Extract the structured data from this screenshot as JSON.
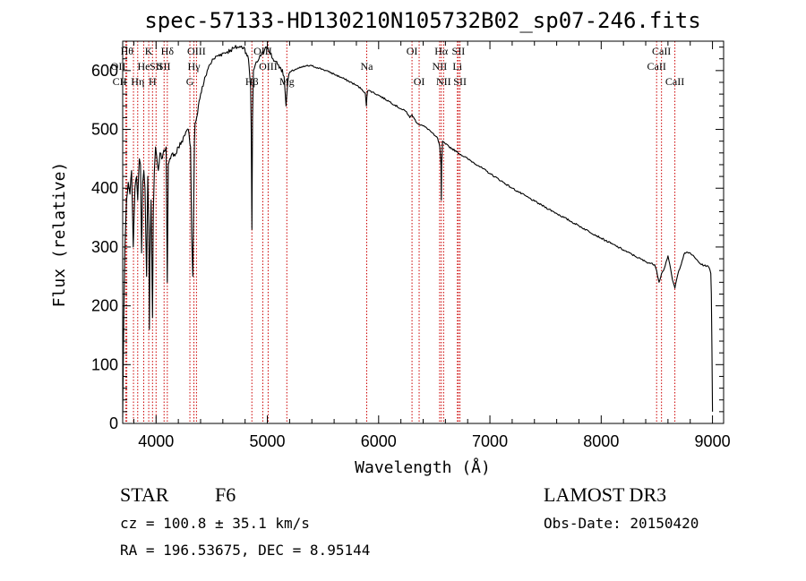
{
  "chart_data": {
    "type": "line",
    "title": "spec-57133-HD130210N105732B02_sp07-246.fits",
    "xlabel": "Wavelength (Å)",
    "ylabel": "Flux (relative)",
    "xlim": [
      3700,
      9100
    ],
    "ylim": [
      0,
      650
    ],
    "xticks": [
      4000,
      5000,
      6000,
      7000,
      8000,
      9000
    ],
    "yticks": [
      0,
      100,
      200,
      300,
      400,
      500,
      600
    ],
    "xticks_minor_step": 200,
    "yticks_minor_step": 20,
    "series": [
      {
        "name": "spectrum",
        "x": [
          3700,
          3710,
          3720,
          3735,
          3750,
          3765,
          3780,
          3795,
          3810,
          3825,
          3835,
          3850,
          3860,
          3870,
          3880,
          3890,
          3900,
          3915,
          3925,
          3935,
          3940,
          3945,
          3955,
          3968,
          3975,
          3985,
          3995,
          4005,
          4020,
          4035,
          4050,
          4070,
          4090,
          4101,
          4110,
          4130,
          4150,
          4170,
          4200,
          4230,
          4260,
          4290,
          4310,
          4320,
          4330,
          4340,
          4345,
          4350,
          4365,
          4380,
          4400,
          4430,
          4460,
          4480,
          4500,
          4520,
          4550,
          4580,
          4610,
          4640,
          4670,
          4700,
          4730,
          4760,
          4790,
          4810,
          4830,
          4850,
          4855,
          4861,
          4867,
          4875,
          4900,
          4925,
          4950,
          4975,
          5000,
          5025,
          5050,
          5075,
          5100,
          5120,
          5150,
          5168,
          5175,
          5183,
          5195,
          5210,
          5250,
          5300,
          5350,
          5400,
          5450,
          5500,
          5550,
          5600,
          5700,
          5800,
          5850,
          5880,
          5890,
          5895,
          5900,
          5920,
          6000,
          6100,
          6200,
          6250,
          6280,
          6300,
          6320,
          6350,
          6400,
          6450,
          6500,
          6530,
          6550,
          6560,
          6563,
          6566,
          6575,
          6600,
          6700,
          6800,
          6900,
          7000,
          7200,
          7400,
          7600,
          7800,
          8000,
          8100,
          8200,
          8300,
          8400,
          8480,
          8498,
          8520,
          8542,
          8560,
          8600,
          8640,
          8662,
          8690,
          8750,
          8800,
          8850,
          8900,
          8950,
          8970,
          8985,
          8990,
          8995,
          9000
        ],
        "y": [
          10,
          180,
          300,
          380,
          410,
          390,
          430,
          300,
          400,
          420,
          380,
          450,
          440,
          290,
          410,
          430,
          400,
          250,
          420,
          330,
          160,
          280,
          380,
          180,
          360,
          430,
          470,
          455,
          430,
          460,
          450,
          465,
          470,
          240,
          440,
          450,
          460,
          455,
          470,
          480,
          490,
          500,
          470,
          320,
          250,
          400,
          480,
          510,
          520,
          540,
          560,
          580,
          600,
          610,
          615,
          620,
          625,
          628,
          630,
          632,
          635,
          638,
          640,
          640,
          640,
          630,
          620,
          570,
          500,
          330,
          520,
          600,
          615,
          620,
          630,
          635,
          640,
          630,
          620,
          615,
          610,
          605,
          590,
          540,
          560,
          580,
          595,
          598,
          602,
          605,
          608,
          608,
          605,
          602,
          598,
          594,
          585,
          575,
          568,
          562,
          540,
          555,
          565,
          566,
          558,
          547,
          535,
          530,
          520,
          525,
          518,
          510,
          506,
          500,
          490,
          485,
          470,
          440,
          380,
          440,
          480,
          475,
          462,
          450,
          438,
          425,
          400,
          378,
          357,
          336,
          315,
          305,
          295,
          285,
          275,
          270,
          260,
          240,
          255,
          260,
          285,
          245,
          230,
          255,
          290,
          290,
          280,
          270,
          268,
          265,
          255,
          220,
          120,
          20
        ]
      }
    ],
    "spectral_lines": [
      {
        "label": "Hθ",
        "wavelength": 3797,
        "row": 0,
        "anchor": "end"
      },
      {
        "label": "OII",
        "wavelength": 3727,
        "row": 1,
        "anchor": "end"
      },
      {
        "label": "CII",
        "wavelength": 3737,
        "row": 2,
        "anchor": "end"
      },
      {
        "label": "Hη",
        "wavelength": 3835,
        "row": 2,
        "anchor": "middle"
      },
      {
        "label": "He",
        "wavelength": 3889,
        "row": 1,
        "anchor": "middle"
      },
      {
        "label": "K",
        "wavelength": 3934,
        "row": 0,
        "anchor": "middle"
      },
      {
        "label": "SII",
        "wavelength": 4000,
        "row": 1,
        "anchor": "middle"
      },
      {
        "label": "H",
        "wavelength": 3968,
        "row": 2,
        "anchor": "middle"
      },
      {
        "label": "Hδ",
        "wavelength": 4101,
        "row": 0,
        "anchor": "middle"
      },
      {
        "label": "SII",
        "wavelength": 4072,
        "row": 1,
        "anchor": "middle"
      },
      {
        "label": "OIII",
        "wavelength": 4363,
        "row": 0,
        "anchor": "middle"
      },
      {
        "label": "Hγ",
        "wavelength": 4340,
        "row": 1,
        "anchor": "middle"
      },
      {
        "label": "G",
        "wavelength": 4304,
        "row": 2,
        "anchor": "middle"
      },
      {
        "label": "Hβ",
        "wavelength": 4861,
        "row": 2,
        "anchor": "middle"
      },
      {
        "label": "OIII",
        "wavelength": 4959,
        "row": 0,
        "anchor": "middle"
      },
      {
        "label": "OIII",
        "wavelength": 5007,
        "row": 1,
        "anchor": "middle"
      },
      {
        "label": "Mg",
        "wavelength": 5175,
        "row": 2,
        "anchor": "middle"
      },
      {
        "label": "Na",
        "wavelength": 5893,
        "row": 1,
        "anchor": "middle"
      },
      {
        "label": "OI",
        "wavelength": 6300,
        "row": 0,
        "anchor": "middle"
      },
      {
        "label": "OI",
        "wavelength": 6364,
        "row": 2,
        "anchor": "middle"
      },
      {
        "label": "Hα",
        "wavelength": 6563,
        "row": 0,
        "anchor": "middle"
      },
      {
        "label": "NII",
        "wavelength": 6548,
        "row": 1,
        "anchor": "middle"
      },
      {
        "label": "NII",
        "wavelength": 6584,
        "row": 2,
        "anchor": "middle"
      },
      {
        "label": "SII",
        "wavelength": 6717,
        "row": 0,
        "anchor": "middle"
      },
      {
        "label": "Li",
        "wavelength": 6708,
        "row": 1,
        "anchor": "middle"
      },
      {
        "label": "SII",
        "wavelength": 6731,
        "row": 2,
        "anchor": "middle"
      },
      {
        "label": "CaII",
        "wavelength": 8542,
        "row": 0,
        "anchor": "middle"
      },
      {
        "label": "CaII",
        "wavelength": 8498,
        "row": 1,
        "anchor": "middle"
      },
      {
        "label": "CaII",
        "wavelength": 8662,
        "row": 2,
        "anchor": "middle"
      }
    ]
  },
  "info": {
    "object_class": "STAR",
    "subclass": "F6",
    "survey": "LAMOST DR3",
    "redshift": "cz = 100.8 ± 35.1 km/s",
    "obs_date": "Obs-Date: 20150420",
    "coordinates": "RA = 196.53675, DEC =   8.95144"
  },
  "colors": {
    "spectrum": "#000000",
    "line_marker": "#cc0000",
    "axes": "#000000"
  }
}
